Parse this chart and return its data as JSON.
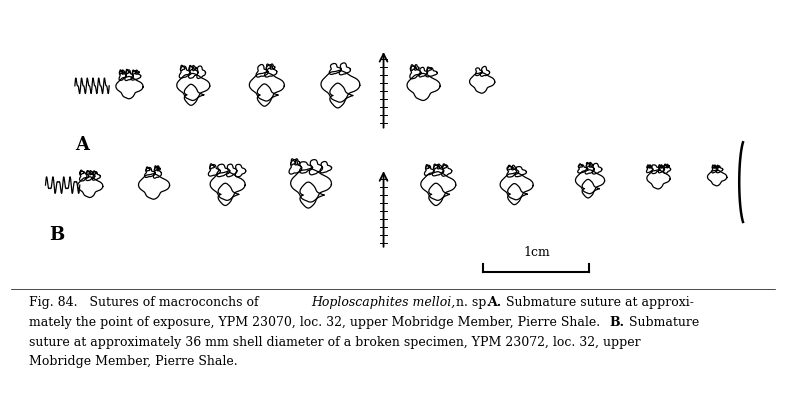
{
  "bg_color": "#ffffff",
  "figure_width": 8.0,
  "figure_height": 4.0,
  "dpi": 100,
  "label_A": "A",
  "label_B": "B",
  "scale_label": "1cm",
  "caption_fontsize": 9.0
}
